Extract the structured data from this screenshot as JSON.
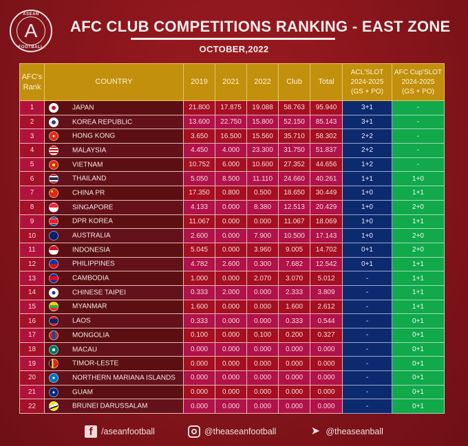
{
  "header": {
    "logo_top": "ASEAN",
    "logo_letter": "A",
    "logo_bottom": "FOOTBALL",
    "title": "AFC CLUB COMPETITIONS RANKING - EAST ZONE",
    "subtitle": "OCTOBER,2022"
  },
  "table": {
    "columns": {
      "rank_l1": "AFC's",
      "rank_l2": "Rank",
      "country": "COUNTRY",
      "y2019": "2019",
      "y2021": "2021",
      "y2022": "2022",
      "club": "Club",
      "total": "Total",
      "acl_l1": "ACL'SLOT",
      "acl_l2": "2024-2025",
      "acl_l3": "(GS + PO)",
      "cup_l1": "AFC Cup'SLOT",
      "cup_l2": "2024-2025",
      "cup_l3": "(GS + PO)"
    },
    "rows": [
      {
        "rank": "1",
        "country": "JAPAN",
        "flag": "japan-flag",
        "y2019": "21.800",
        "y2021": "17.875",
        "y2022": "19.088",
        "club": "58.763",
        "total": "95.940",
        "acl": "3+1",
        "cup": "-"
      },
      {
        "rank": "2",
        "country": "KOREA REPUBLIC",
        "flag": "korea-republic-flag",
        "y2019": "13.600",
        "y2021": "22.750",
        "y2022": "15.800",
        "club": "52.150",
        "total": "85.143",
        "acl": "3+1",
        "cup": "-"
      },
      {
        "rank": "3",
        "country": "HONG KONG",
        "flag": "hong-kong-flag",
        "y2019": "3.650",
        "y2021": "16.500",
        "y2022": "15.560",
        "club": "35.710",
        "total": "58.302",
        "acl": "2+2",
        "cup": "-"
      },
      {
        "rank": "4",
        "country": "MALAYSIA",
        "flag": "malaysia-flag",
        "y2019": "4.450",
        "y2021": "4.000",
        "y2022": "23.300",
        "club": "31.750",
        "total": "51.837",
        "acl": "2+2",
        "cup": "-"
      },
      {
        "rank": "5",
        "country": "VIETNAM",
        "flag": "vietnam-flag",
        "y2019": "10.752",
        "y2021": "6.000",
        "y2022": "10.600",
        "club": "27.352",
        "total": "44.656",
        "acl": "1+2",
        "cup": "-"
      },
      {
        "rank": "6",
        "country": "THAILAND",
        "flag": "thailand-flag",
        "y2019": "5.050",
        "y2021": "8.500",
        "y2022": "11.110",
        "club": "24.660",
        "total": "40.261",
        "acl": "1+1",
        "cup": "1+0"
      },
      {
        "rank": "7",
        "country": "CHINA PR",
        "flag": "china-flag",
        "y2019": "17.350",
        "y2021": "0.800",
        "y2022": "0.500",
        "club": "18.650",
        "total": "30.449",
        "acl": "1+0",
        "cup": "1+1"
      },
      {
        "rank": "8",
        "country": "SINGAPORE",
        "flag": "singapore-flag",
        "y2019": "4.133",
        "y2021": "0.000",
        "y2022": "8.380",
        "club": "12.513",
        "total": "20.429",
        "acl": "1+0",
        "cup": "2+0"
      },
      {
        "rank": "9",
        "country": "DPR KOREA",
        "flag": "dpr-korea-flag",
        "y2019": "11.067",
        "y2021": "0.000",
        "y2022": "0.000",
        "club": "11.067",
        "total": "18.069",
        "acl": "1+0",
        "cup": "1+1"
      },
      {
        "rank": "10",
        "country": "AUSTRALIA",
        "flag": "australia-flag",
        "y2019": "2.600",
        "y2021": "0.000",
        "y2022": "7.900",
        "club": "10.500",
        "total": "17.143",
        "acl": "1+0",
        "cup": "2+0"
      },
      {
        "rank": "11",
        "country": "INDONESIA",
        "flag": "indonesia-flag",
        "y2019": "5.045",
        "y2021": "0.000",
        "y2022": "3.960",
        "club": "9.005",
        "total": "14.702",
        "acl": "0+1",
        "cup": "2+0"
      },
      {
        "rank": "12",
        "country": "PHILIPPINES",
        "flag": "philippines-flag",
        "y2019": "4.782",
        "y2021": "2.600",
        "y2022": "0.300",
        "club": "7.682",
        "total": "12.542",
        "acl": "0+1",
        "cup": "1+1"
      },
      {
        "rank": "13",
        "country": "CAMBODIA",
        "flag": "cambodia-flag",
        "y2019": "1.000",
        "y2021": "0.000",
        "y2022": "2.070",
        "club": "3.070",
        "total": "5.012",
        "acl": "-",
        "cup": "1+1"
      },
      {
        "rank": "14",
        "country": "CHINESE TAIPEI",
        "flag": "chinese-taipei-flag",
        "y2019": "0.333",
        "y2021": "2.000",
        "y2022": "0.000",
        "club": "2.333",
        "total": "3.809",
        "acl": "-",
        "cup": "1+1"
      },
      {
        "rank": "15",
        "country": "MYANMAR",
        "flag": "myanmar-flag",
        "y2019": "1.600",
        "y2021": "0.000",
        "y2022": "0.000",
        "club": "1.600",
        "total": "2.612",
        "acl": "-",
        "cup": "1+1"
      },
      {
        "rank": "16",
        "country": "LAOS",
        "flag": "laos-flag",
        "y2019": "0.333",
        "y2021": "0.000",
        "y2022": "0.000",
        "club": "0.333",
        "total": "0.544",
        "acl": "-",
        "cup": "0+1"
      },
      {
        "rank": "17",
        "country": "MONGOLIA",
        "flag": "mongolia-flag",
        "y2019": "0.100",
        "y2021": "0.000",
        "y2022": "0.100",
        "club": "0.200",
        "total": "0.327",
        "acl": "-",
        "cup": "0+1"
      },
      {
        "rank": "18",
        "country": "MACAU",
        "flag": "macau-flag",
        "y2019": "0.000",
        "y2021": "0.000",
        "y2022": "0.000",
        "club": "0.000",
        "total": "0.000",
        "acl": "-",
        "cup": "0+1"
      },
      {
        "rank": "19",
        "country": "TIMOR-LESTE",
        "flag": "timor-leste-flag",
        "y2019": "0.000",
        "y2021": "0.000",
        "y2022": "0.000",
        "club": "0.000",
        "total": "0.000",
        "acl": "-",
        "cup": "0+1"
      },
      {
        "rank": "20",
        "country": "NORTHERN MARIANA ISLANDS",
        "flag": "northern-mariana-islands-flag",
        "y2019": "0.000",
        "y2021": "0.000",
        "y2022": "0.000",
        "club": "0.000",
        "total": "0.000",
        "acl": "-",
        "cup": "0+1"
      },
      {
        "rank": "21",
        "country": "GUAM",
        "flag": "guam-flag",
        "y2019": "0.000",
        "y2021": "0.000",
        "y2022": "0.000",
        "club": "0.000",
        "total": "0.000",
        "acl": "-",
        "cup": "0+1"
      },
      {
        "rank": "22",
        "country": "BRUNEI DARUSSALAM",
        "flag": "brunei-flag",
        "y2019": "0.000",
        "y2021": "0.000",
        "y2022": "0.000",
        "club": "0.000",
        "total": "0.000",
        "acl": "-",
        "cup": "0+1"
      }
    ]
  },
  "footer": {
    "facebook": "/aseanfootball",
    "instagram": "@theaseanfootball",
    "twitter": "@theaseanball",
    "facebook_icon": "f",
    "twitter_icon": "🐦"
  },
  "colors": {
    "background": "#8a161c",
    "header_gold": "#c2900d",
    "acl_blue": "#0d2a6e",
    "cup_green": "#12a84c"
  }
}
